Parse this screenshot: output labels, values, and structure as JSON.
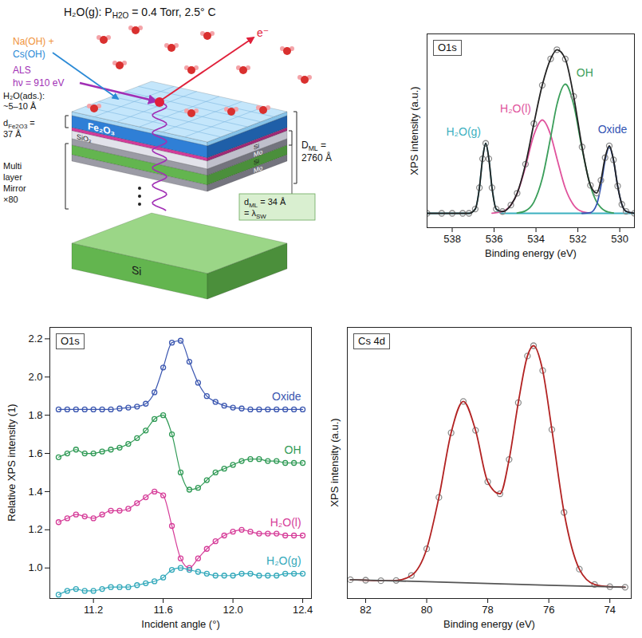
{
  "diagram": {
    "condition": [
      {
        "text": "H₂O(g): P"
      },
      {
        "text": "H2O",
        "sub": true
      },
      {
        "text": " = 0.4 Torr, 2.5° C"
      }
    ],
    "reactants": [
      {
        "text": "Na(OH) +",
        "color": "#f0923a"
      },
      {
        "text": "Cs(OH)",
        "color": "#2b8ad6"
      }
    ],
    "source": {
      "lines": [
        "ALS",
        "hν = 910 eV"
      ],
      "color": "#a12fb5"
    },
    "electron": {
      "text": "e⁻",
      "color": "#e0203a"
    },
    "adsorbed": [
      "H₂O(ads.):",
      "~5–10 Å"
    ],
    "film_thickness": [
      [
        {
          "text": "d"
        },
        {
          "text": "Fe2O3",
          "sub": true
        },
        {
          "text": " ="
        }
      ],
      [
        {
          "text": "37 Å"
        }
      ]
    ],
    "mirror": [
      "Multi",
      "layer",
      "Mirror",
      "×80"
    ],
    "layers": [
      {
        "label": "Fe₂O₃"
      },
      {
        "label": "SiO₂"
      },
      {
        "label": "Si"
      },
      {
        "label": "Mo"
      },
      {
        "label": "Si"
      },
      {
        "label": "Mo"
      }
    ],
    "substrate": "Si",
    "total_thickness": [
      [
        {
          "text": "D"
        },
        {
          "text": "ML",
          "sub": true
        },
        {
          "text": " ="
        }
      ],
      [
        {
          "text": "2760 Å"
        }
      ]
    ],
    "period": [
      [
        {
          "text": "d"
        },
        {
          "text": "ML",
          "sub": true
        },
        {
          "text": " = 34 Å"
        }
      ],
      [
        {
          "text": "= λ"
        },
        {
          "text": "SW",
          "sub": true
        }
      ]
    ]
  },
  "chart_data": [
    {
      "type": "line",
      "title": "O1s",
      "x_label": "Binding energy (eV)",
      "y_label": "XPS intensity (a.u.)",
      "xlim": [
        539.2,
        529.3
      ],
      "xticks": [
        538,
        536,
        534,
        532,
        530
      ],
      "ylim": [
        0,
        1.08
      ],
      "yticks": [],
      "tick_labels": "x",
      "series": [
        {
          "name": "H₂O(g)",
          "color": "#3bb0c0",
          "x": [
            539.2,
            538,
            537.2,
            536.9,
            536.7,
            536.55,
            536.4,
            536.25,
            536.1,
            535.9,
            535.6,
            534,
            532,
            530,
            529.3
          ],
          "values": [
            0.08,
            0.08,
            0.08,
            0.104,
            0.223,
            0.384,
            0.47,
            0.384,
            0.223,
            0.104,
            0.08,
            0.08,
            0.08,
            0.08,
            0.08
          ]
        },
        {
          "name": "H₂O(l)",
          "color": "#e0529c",
          "x": [
            536.1,
            535.6,
            535.2,
            534.9,
            534.5,
            534.1,
            533.7,
            533.3,
            533.0,
            532.6,
            532.2,
            531.8,
            531.4
          ],
          "values": [
            0.081,
            0.09,
            0.126,
            0.19,
            0.34,
            0.517,
            0.6,
            0.517,
            0.386,
            0.22,
            0.126,
            0.09,
            0.082
          ]
        },
        {
          "name": "OH",
          "color": "#3a9e5a",
          "x": [
            534.9,
            534.5,
            534.1,
            533.7,
            533.3,
            533.0,
            532.6,
            532.2,
            531.8,
            531.4,
            531.1,
            530.9,
            530.7,
            530.5,
            530.3
          ],
          "values": [
            0.082,
            0.094,
            0.143,
            0.274,
            0.504,
            0.686,
            0.8,
            0.686,
            0.44,
            0.232,
            0.143,
            0.112,
            0.094,
            0.086,
            0.082
          ]
        },
        {
          "name": "Oxide",
          "color": "#3355b3",
          "x": [
            531.8,
            531.4,
            531.1,
            530.9,
            530.7,
            530.5,
            530.3,
            530.1,
            529.9,
            529.7,
            529.3
          ],
          "values": [
            0.08,
            0.084,
            0.13,
            0.232,
            0.376,
            0.45,
            0.376,
            0.232,
            0.13,
            0.091,
            0.08
          ]
        },
        {
          "color": "#222222",
          "marker": "open_circle",
          "x": [
            539.2,
            538.5,
            538,
            537.5,
            537.2,
            536.9,
            536.7,
            536.55,
            536.4,
            536.25,
            536.1,
            535.9,
            535.6,
            535.2,
            534.9,
            534.5,
            534.1,
            533.7,
            533.3,
            533.0,
            532.6,
            532.2,
            531.8,
            531.4,
            531.1,
            530.9,
            530.7,
            530.5,
            530.3,
            530.1,
            529.9,
            529.7,
            529.3
          ],
          "values": [
            0.08,
            0.08,
            0.08,
            0.08,
            0.08,
            0.104,
            0.223,
            0.384,
            0.47,
            0.384,
            0.223,
            0.104,
            0.09,
            0.126,
            0.192,
            0.354,
            0.58,
            0.794,
            0.941,
            0.992,
            0.94,
            0.732,
            0.45,
            0.236,
            0.193,
            0.264,
            0.39,
            0.456,
            0.378,
            0.232,
            0.13,
            0.091,
            0.08
          ]
        }
      ]
    },
    {
      "type": "line",
      "title": "O1s",
      "x_label": "Incident angle (°)",
      "y_label": "Relative XPS intensity (1)",
      "xlim": [
        10.95,
        12.45
      ],
      "xticks": [
        11.2,
        11.6,
        {
          "value": 12,
          "label": "12.0"
        },
        12.4
      ],
      "ylim": [
        0.84,
        2.26
      ],
      "yticks": [
        {
          "value": 1,
          "label": "1.0"
        },
        1.2,
        1.4,
        1.6,
        1.8,
        {
          "value": 2,
          "label": "2.0"
        },
        2.2
      ],
      "marker": "open_circle",
      "x": [
        11.0,
        11.05,
        11.1,
        11.15,
        11.2,
        11.25,
        11.3,
        11.35,
        11.4,
        11.45,
        11.5,
        11.55,
        11.6,
        11.65,
        11.7,
        11.75,
        11.8,
        11.85,
        11.9,
        11.95,
        12.0,
        12.05,
        12.1,
        12.15,
        12.2,
        12.25,
        12.3,
        12.35,
        12.4
      ],
      "series": [
        {
          "name": "Oxide",
          "color": "#3a56b0",
          "values": [
            1.83,
            1.83,
            1.83,
            1.83,
            1.83,
            1.83,
            1.83,
            1.835,
            1.84,
            1.845,
            1.86,
            1.92,
            2.05,
            2.18,
            2.19,
            2.08,
            1.97,
            1.9,
            1.87,
            1.85,
            1.84,
            1.835,
            1.83,
            1.83,
            1.83,
            1.83,
            1.83,
            1.83,
            1.83
          ]
        },
        {
          "name": "OH",
          "color": "#2f9a55",
          "values": [
            1.58,
            1.6,
            1.62,
            1.6,
            1.6,
            1.61,
            1.62,
            1.63,
            1.65,
            1.68,
            1.72,
            1.78,
            1.8,
            1.7,
            1.5,
            1.41,
            1.42,
            1.46,
            1.5,
            1.52,
            1.54,
            1.56,
            1.57,
            1.57,
            1.56,
            1.56,
            1.55,
            1.55,
            1.55
          ]
        },
        {
          "name": "H₂O(l)",
          "color": "#d63d99",
          "values": [
            1.24,
            1.26,
            1.28,
            1.27,
            1.26,
            1.28,
            1.3,
            1.3,
            1.31,
            1.34,
            1.37,
            1.4,
            1.38,
            1.22,
            1.05,
            1.0,
            1.05,
            1.1,
            1.14,
            1.17,
            1.19,
            1.2,
            1.19,
            1.18,
            1.18,
            1.18,
            1.17,
            1.17,
            1.17
          ]
        },
        {
          "name": "H₂O(g)",
          "color": "#33a9bb",
          "values": [
            0.86,
            0.88,
            0.89,
            0.88,
            0.88,
            0.89,
            0.9,
            0.9,
            0.9,
            0.91,
            0.92,
            0.93,
            0.95,
            0.99,
            1.0,
            0.99,
            0.98,
            0.97,
            0.96,
            0.96,
            0.96,
            0.97,
            0.97,
            0.96,
            0.96,
            0.96,
            0.97,
            0.97,
            0.97
          ]
        }
      ]
    },
    {
      "type": "line",
      "title": "Cs 4d",
      "x_label": "Binding energy (eV)",
      "y_label": "XPS intensity (a.u.)",
      "xlim": [
        82.6,
        73.3
      ],
      "xticks": [
        82,
        80,
        78,
        76,
        74
      ],
      "ylim": [
        0,
        1.08
      ],
      "yticks": [],
      "tick_labels": "x",
      "series": [
        {
          "color": "#b22222",
          "marker": "open_circle",
          "x": [
            82.5,
            82,
            81.5,
            81,
            80.5,
            80,
            79.6,
            79.2,
            78.8,
            78.4,
            78,
            77.6,
            77.3,
            77,
            76.7,
            76.5,
            76.2,
            75.9,
            75.5,
            75,
            74.5,
            74,
            73.5
          ],
          "values": [
            0.075,
            0.073,
            0.071,
            0.072,
            0.092,
            0.198,
            0.403,
            0.66,
            0.785,
            0.67,
            0.465,
            0.417,
            0.554,
            0.78,
            0.966,
            1.007,
            0.908,
            0.673,
            0.343,
            0.117,
            0.056,
            0.047,
            0.045
          ]
        },
        {
          "color": "#555555",
          "x": [
            82.5,
            80,
            78,
            76,
            73.5
          ],
          "values": [
            0.075,
            0.067,
            0.06,
            0.053,
            0.045
          ]
        }
      ]
    }
  ]
}
